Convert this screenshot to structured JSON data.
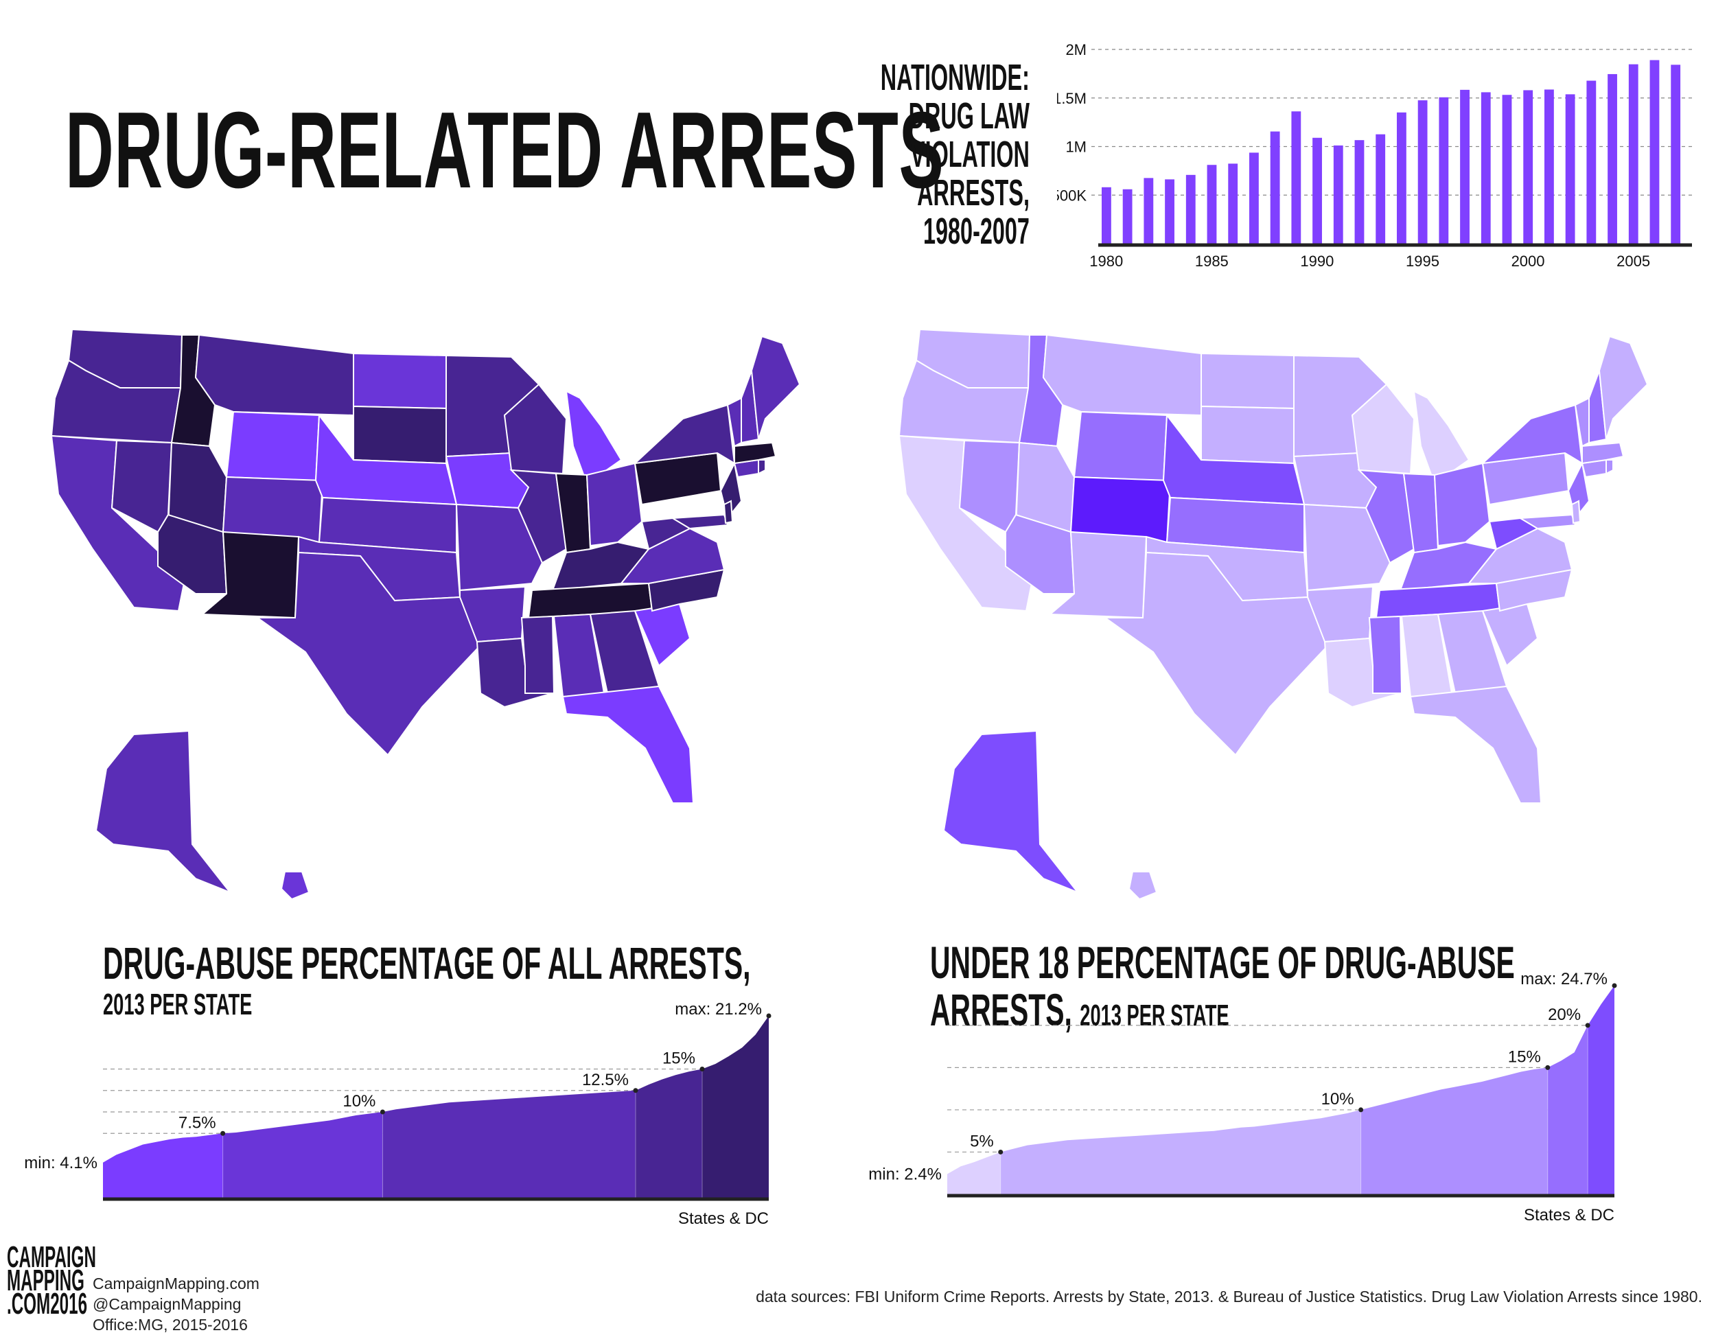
{
  "title": "DRUG-RELATED ARRESTS",
  "nation_label": [
    "NATIONWIDE:",
    "DRUG LAW",
    "VIOLATION",
    "ARRESTS,",
    "1980-2007"
  ],
  "maps": {
    "left": {
      "palette": [
        "#7b3cff",
        "#6a35d8",
        "#5a2db6",
        "#482593",
        "#361d70",
        "#1a0f30"
      ]
    },
    "right": {
      "palette": [
        "#ddd0ff",
        "#c4afff",
        "#ad8fff",
        "#966efe",
        "#7e4dfe",
        "#5d1bfc"
      ]
    }
  },
  "left_chart": {
    "title_line1": "DRUG-ABUSE PERCENTAGE OF ALL ARRESTS,",
    "title_line2": "2013 PER STATE",
    "min_label": "min: 4.1%",
    "max_label": "max: 21.2%",
    "xlabel": "States & DC"
  },
  "right_chart": {
    "title_line1": "UNDER 18 PERCENTAGE OF DRUG-ABUSE",
    "title_line2_big": "ARRESTS,",
    "title_line2_small": "2013 PER STATE",
    "min_label": "min: 2.4%",
    "max_label": "max: 24.7%",
    "xlabel": "States & DC"
  },
  "credits": [
    "CampaignMapping.com",
    "@CampaignMapping",
    "Office:MG, 2015-2016"
  ],
  "logo": [
    "CAMPAIGN",
    "MAPPING",
    ".COM",
    "2016"
  ],
  "sources": "data sources: FBI Uniform Crime Reports. Arrests by State, 2013. & Bureau of Justice Statistics. Drug Law Violation Arrests since 1980.",
  "chart_data": [
    {
      "type": "bar",
      "title": "NATIONWIDE: DRUG LAW VIOLATION ARRESTS, 1980-2007",
      "bar_color": "#8040ff",
      "x": [
        1980,
        1981,
        1982,
        1983,
        1984,
        1985,
        1986,
        1987,
        1988,
        1989,
        1990,
        1991,
        1992,
        1993,
        1994,
        1995,
        1996,
        1997,
        1998,
        1999,
        2000,
        2001,
        2002,
        2003,
        2004,
        2005,
        2006,
        2007
      ],
      "values": [
        581000,
        560000,
        676000,
        662000,
        708000,
        811000,
        824000,
        937000,
        1155000,
        1362000,
        1090000,
        1011000,
        1066000,
        1126000,
        1351000,
        1476000,
        1507000,
        1584000,
        1559000,
        1532000,
        1580000,
        1587000,
        1538000,
        1678000,
        1746000,
        1847000,
        1890000,
        1842000
      ],
      "ylim": [
        0,
        2000000
      ],
      "yticks": [
        500000,
        1000000,
        1500000,
        2000000
      ],
      "ytick_labels": [
        "500K",
        "1M",
        "1.5M",
        "2M"
      ],
      "xticks": [
        1980,
        1985,
        1990,
        1995,
        2000,
        2005
      ],
      "xtick_labels": [
        "1980",
        "1985",
        "1990",
        "1995",
        "2000",
        "2005"
      ],
      "grid": true
    },
    {
      "type": "area",
      "title": "DRUG-ABUSE PERCENTAGE OF ALL ARRESTS, 2013 PER STATE",
      "xlabel": "States & DC",
      "n_states": 51,
      "values": [
        4.1,
        5.0,
        5.6,
        6.2,
        6.5,
        6.8,
        7.0,
        7.1,
        7.3,
        7.5,
        7.6,
        7.8,
        8.0,
        8.2,
        8.4,
        8.6,
        8.8,
        9.0,
        9.3,
        9.6,
        9.8,
        10.0,
        10.3,
        10.5,
        10.7,
        10.9,
        11.1,
        11.2,
        11.3,
        11.4,
        11.5,
        11.6,
        11.7,
        11.8,
        11.9,
        12.0,
        12.1,
        12.2,
        12.3,
        12.4,
        12.5,
        13.2,
        13.8,
        14.3,
        14.7,
        15.0,
        15.6,
        16.5,
        17.5,
        19.0,
        21.2
      ],
      "ylim": [
        0,
        22
      ],
      "thresholds": [
        7.5,
        10,
        12.5,
        15
      ],
      "threshold_labels": [
        "7.5%",
        "10%",
        "12.5%",
        "15%"
      ],
      "band_colors": [
        "#7b3cff",
        "#6a35d8",
        "#5a2db6",
        "#482593",
        "#361d70",
        "#1a0f30"
      ],
      "min": 4.1,
      "max": 21.2
    },
    {
      "type": "area",
      "title": "UNDER 18 PERCENTAGE OF DRUG-ABUSE ARRESTS, 2013 PER STATE",
      "xlabel": "States & DC",
      "n_states": 51,
      "values": [
        2.4,
        3.3,
        3.8,
        4.4,
        5.0,
        5.4,
        5.8,
        6.0,
        6.2,
        6.4,
        6.5,
        6.6,
        6.7,
        6.8,
        6.9,
        7.0,
        7.1,
        7.2,
        7.3,
        7.4,
        7.5,
        7.7,
        7.9,
        8.0,
        8.2,
        8.4,
        8.6,
        8.8,
        9.0,
        9.3,
        9.6,
        10.0,
        10.4,
        10.8,
        11.2,
        11.6,
        12.0,
        12.4,
        12.7,
        13.0,
        13.3,
        13.7,
        14.1,
        14.5,
        14.8,
        15.0,
        15.8,
        16.8,
        20.0,
        22.5,
        24.7
      ],
      "ylim": [
        0,
        26
      ],
      "thresholds": [
        5,
        10,
        15,
        20
      ],
      "threshold_labels": [
        "5%",
        "10%",
        "15%",
        "20%"
      ],
      "band_colors": [
        "#ddd0ff",
        "#c4afff",
        "#ad8fff",
        "#966efe",
        "#7e4dfe",
        "#5d1bfc"
      ],
      "min": 2.4,
      "max": 24.7
    }
  ]
}
